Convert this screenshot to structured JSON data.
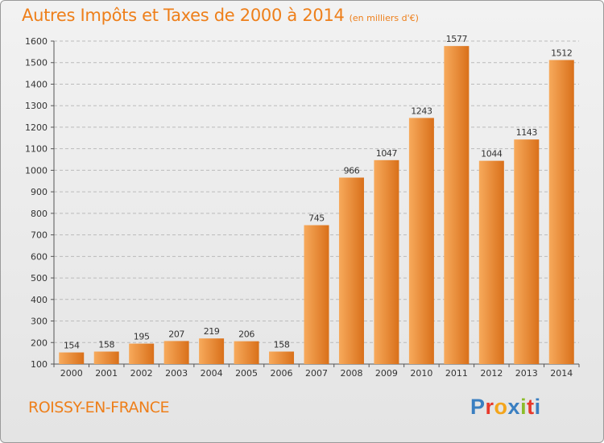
{
  "title": "Autres Impôts et Taxes de 2000 à 2014",
  "subtitle": "(en milliers d'€)",
  "commune": "ROISSY-EN-FRANCE",
  "logo": {
    "text": "Proxiti",
    "colors": [
      "#3a7fc1",
      "#e8392b",
      "#f3a51c",
      "#3a7fc1",
      "#8cbd2b",
      "#e8392b",
      "#3a7fc1"
    ]
  },
  "colors": {
    "title": "#ee7f1a",
    "bar_light": "#f7aa5c",
    "bar_dark": "#d9701a",
    "axis": "#555555"
  },
  "chart_data": {
    "type": "bar",
    "categories": [
      "2000",
      "2001",
      "2002",
      "2003",
      "2004",
      "2005",
      "2006",
      "2007",
      "2008",
      "2009",
      "2010",
      "2011",
      "2012",
      "2013",
      "2014"
    ],
    "values": [
      154,
      158,
      195,
      207,
      219,
      206,
      158,
      745,
      966,
      1047,
      1243,
      1577,
      1044,
      1143,
      1512
    ],
    "ylim": [
      100,
      1600
    ],
    "yticks": [
      100,
      200,
      300,
      400,
      500,
      600,
      700,
      800,
      900,
      1000,
      1100,
      1200,
      1300,
      1400,
      1500,
      1600
    ],
    "grid": true,
    "data_labels": true
  }
}
